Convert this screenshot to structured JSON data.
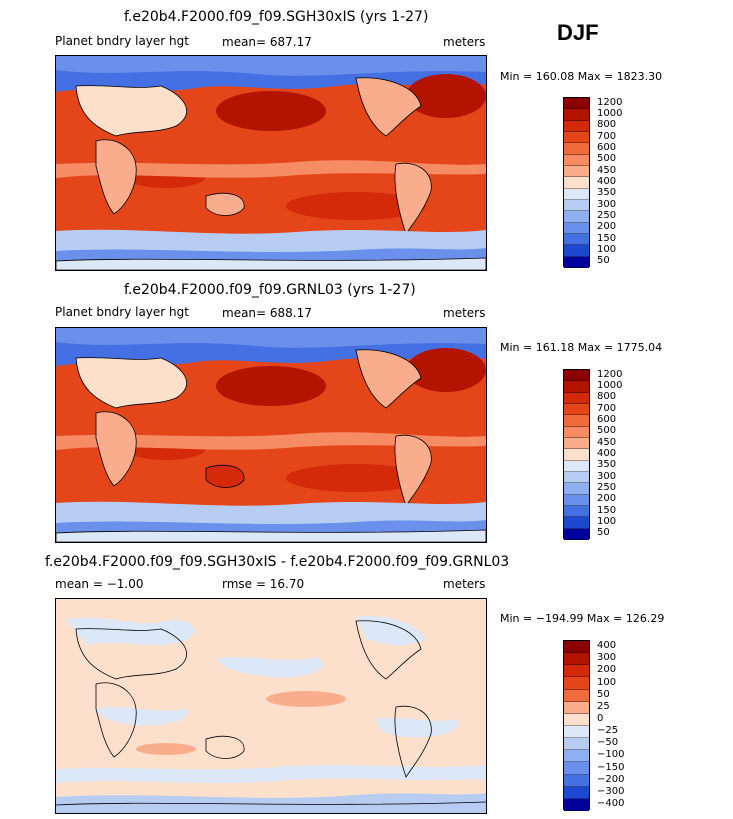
{
  "season": "DJF",
  "panels": [
    {
      "title": "f.e20b4.F2000.f09_f09.SGH30xIS (yrs 1-27)",
      "variable": "Planet bndry layer hgt",
      "mean_text": "mean= 687.17",
      "units": "meters",
      "minmax": "Min = 160.08  Max = 1823.30",
      "levels": [
        "1200",
        "1000",
        "800",
        "700",
        "600",
        "500",
        "450",
        "400",
        "350",
        "300",
        "250",
        "200",
        "150",
        "100",
        "50"
      ]
    },
    {
      "title": "f.e20b4.F2000.f09_f09.GRNL03 (yrs 1-27)",
      "variable": "Planet bndry layer hgt",
      "mean_text": "mean= 688.17",
      "units": "meters",
      "minmax": "Min = 161.18  Max = 1775.04",
      "levels": [
        "1200",
        "1000",
        "800",
        "700",
        "600",
        "500",
        "450",
        "400",
        "350",
        "300",
        "250",
        "200",
        "150",
        "100",
        "50"
      ]
    },
    {
      "title": "f.e20b4.F2000.f09_f09.SGH30xIS - f.e20b4.F2000.f09_f09.GRNL03",
      "mean_text": "mean =  −1.00",
      "rmse_text": "rmse =  16.70",
      "units": "meters",
      "minmax": "Min = −194.99  Max = 126.29",
      "levels": [
        "400",
        "300",
        "200",
        "100",
        "50",
        "25",
        "0",
        "−25",
        "−50",
        "−100",
        "−150",
        "−200",
        "−300",
        "−400"
      ]
    }
  ],
  "colors": {
    "abs_scale": [
      "#8b0000",
      "#b31400",
      "#d42a0a",
      "#e4461a",
      "#ef6a3c",
      "#f68c64",
      "#f9ad8c",
      "#fde0cc",
      "#dce8f8",
      "#b6ccf0",
      "#8eaff0",
      "#6a90ec",
      "#4570e4",
      "#1f48d2",
      "#00009a"
    ],
    "diff_scale": [
      "#8b0000",
      "#b31400",
      "#d42a0a",
      "#e4461a",
      "#ef6a3c",
      "#f9ad8c",
      "#fde0cc",
      "#dce8f8",
      "#b6ccf0",
      "#8eaff0",
      "#6a90ec",
      "#4570e4",
      "#1f48d2",
      "#00009a"
    ]
  },
  "chart_data": [
    {
      "type": "heatmap",
      "title": "f.e20b4.F2000.f09_f09.SGH30xIS (yrs 1-27)",
      "variable": "Planet bndry layer hgt",
      "units": "meters",
      "mean": 687.17,
      "min": 160.08,
      "max": 1823.3,
      "contour_levels": [
        50,
        100,
        150,
        200,
        250,
        300,
        350,
        400,
        450,
        500,
        600,
        700,
        800,
        1000,
        1200
      ]
    },
    {
      "type": "heatmap",
      "title": "f.e20b4.F2000.f09_f09.GRNL03 (yrs 1-27)",
      "variable": "Planet bndry layer hgt",
      "units": "meters",
      "mean": 688.17,
      "min": 161.18,
      "max": 1775.04,
      "contour_levels": [
        50,
        100,
        150,
        200,
        250,
        300,
        350,
        400,
        450,
        500,
        600,
        700,
        800,
        1000,
        1200
      ]
    },
    {
      "type": "heatmap",
      "title": "f.e20b4.F2000.f09_f09.SGH30xIS - f.e20b4.F2000.f09_f09.GRNL03",
      "units": "meters",
      "mean": -1.0,
      "rmse": 16.7,
      "min": -194.99,
      "max": 126.29,
      "contour_levels": [
        -400,
        -300,
        -200,
        -150,
        -100,
        -50,
        -25,
        0,
        25,
        50,
        100,
        200,
        300,
        400
      ]
    }
  ]
}
